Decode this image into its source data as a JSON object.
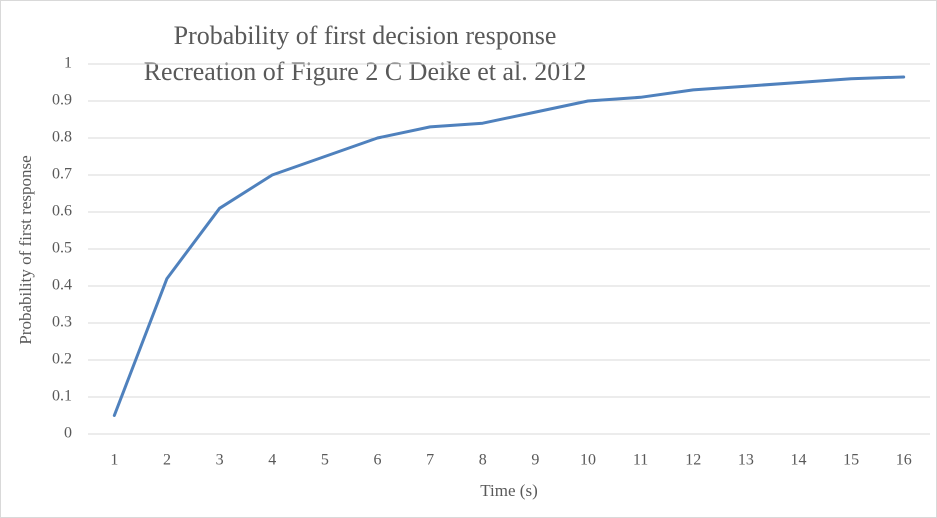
{
  "chart_data": {
    "type": "line",
    "title": "Probability of first decision response",
    "subtitle": "Recreation of Figure 2 C Deike et al. 2012",
    "x_label": "Time (s)",
    "y_label": "Probability of first response",
    "categories": [
      "1",
      "2",
      "3",
      "4",
      "5",
      "6",
      "7",
      "8",
      "9",
      "10",
      "11",
      "12",
      "13",
      "14",
      "15",
      "16"
    ],
    "series": [
      {
        "name": "Probability of first response",
        "color": "#4f81bd",
        "values": [
          0.05,
          0.42,
          0.61,
          0.7,
          0.75,
          0.8,
          0.83,
          0.84,
          0.87,
          0.9,
          0.91,
          0.93,
          0.94,
          0.95,
          0.96,
          0.965
        ]
      }
    ],
    "ylim": [
      0,
      1
    ],
    "yticks": [
      0,
      0.1,
      0.2,
      0.3,
      0.4,
      0.5,
      0.6,
      0.7,
      0.8,
      0.9,
      1
    ],
    "grid": true
  }
}
